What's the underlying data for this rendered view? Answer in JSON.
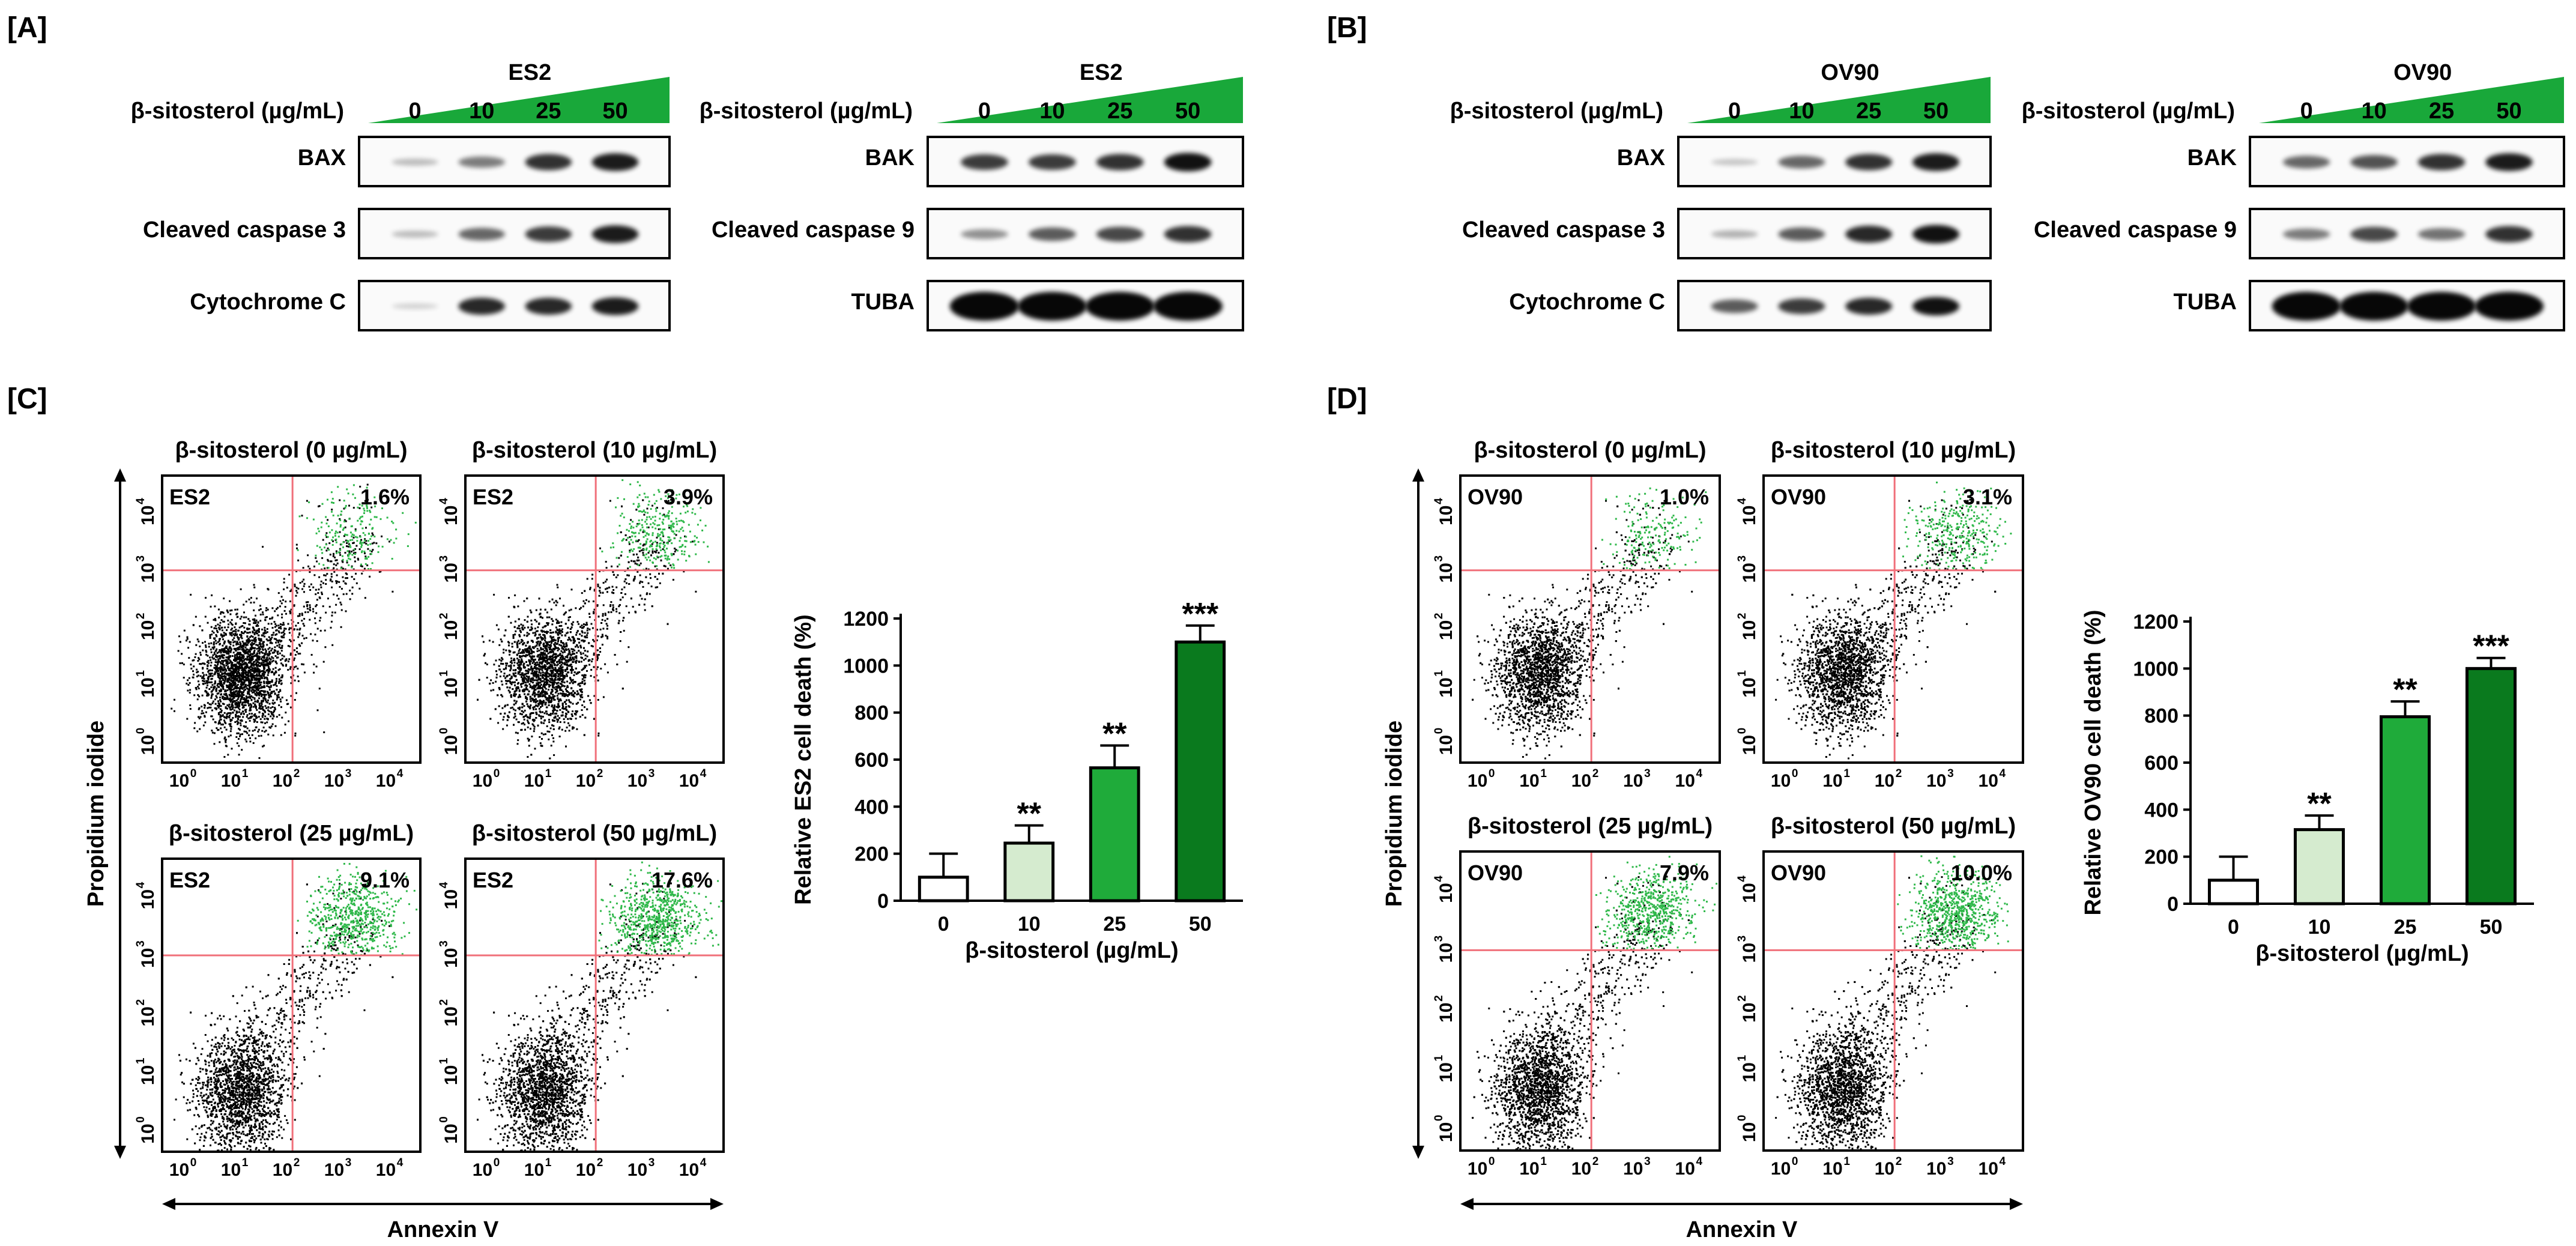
{
  "panels": [
    {
      "label": "[A]",
      "blots": [
        {
          "cell_line": "ES2",
          "dose_label": "β-sitosterol (µg/mL)",
          "doses": [
            "0",
            "10",
            "25",
            "50"
          ],
          "rows": [
            {
              "name": "BAX",
              "intensity": [
                0.15,
                0.45,
                0.8,
                0.9
              ]
            },
            {
              "name": "Cleaved caspase 3",
              "intensity": [
                0.15,
                0.55,
                0.75,
                0.9
              ]
            },
            {
              "name": "Cytochrome C",
              "intensity": [
                0.05,
                0.85,
                0.85,
                0.9
              ]
            }
          ]
        },
        {
          "cell_line": "ES2",
          "dose_label": "β-sitosterol (µg/mL)",
          "doses": [
            "0",
            "10",
            "25",
            "50"
          ],
          "rows": [
            {
              "name": "BAK",
              "intensity": [
                0.75,
                0.75,
                0.8,
                0.95
              ]
            },
            {
              "name": "Cleaved caspase 9",
              "intensity": [
                0.35,
                0.6,
                0.7,
                0.8
              ]
            },
            {
              "name": "TUBA",
              "intensity": [
                1.0,
                1.0,
                1.0,
                1.0
              ]
            }
          ]
        }
      ]
    },
    {
      "label": "[B]",
      "blots": [
        {
          "cell_line": "OV90",
          "dose_label": "β-sitosterol (µg/mL)",
          "doses": [
            "0",
            "10",
            "25",
            "50"
          ],
          "rows": [
            {
              "name": "BAX",
              "intensity": [
                0.1,
                0.55,
                0.8,
                0.9
              ]
            },
            {
              "name": "Cleaved caspase 3",
              "intensity": [
                0.2,
                0.6,
                0.85,
                0.95
              ]
            },
            {
              "name": "Cytochrome C",
              "intensity": [
                0.6,
                0.75,
                0.85,
                0.95
              ]
            }
          ]
        },
        {
          "cell_line": "OV90",
          "dose_label": "β-sitosterol (µg/mL)",
          "doses": [
            "0",
            "10",
            "25",
            "50"
          ],
          "rows": [
            {
              "name": "BAK",
              "intensity": [
                0.55,
                0.65,
                0.8,
                0.9
              ]
            },
            {
              "name": "Cleaved caspase 9",
              "intensity": [
                0.45,
                0.7,
                0.5,
                0.8
              ]
            },
            {
              "name": "TUBA",
              "intensity": [
                1.0,
                1.0,
                1.0,
                1.0
              ]
            }
          ]
        }
      ]
    },
    {
      "label": "[C]",
      "cell_line": "ES2",
      "y_axis_title": "Propidium iodide",
      "x_axis_title": "Annexin V",
      "tick_base": "10",
      "tick_exponents": [
        "0",
        "1",
        "2",
        "3",
        "4"
      ],
      "plots": [
        {
          "title": "β-sitosterol (0 µg/mL)",
          "sample": "ES2",
          "percent": "1.6%"
        },
        {
          "title": "β-sitosterol (10 µg/mL)",
          "sample": "ES2",
          "percent": "3.9%"
        },
        {
          "title": "β-sitosterol (25 µg/mL)",
          "sample": "ES2",
          "percent": "9.1%"
        },
        {
          "title": "β-sitosterol (50 µg/mL)",
          "sample": "ES2",
          "percent": "17.6%"
        }
      ]
    },
    {
      "label": "[D]",
      "cell_line": "OV90",
      "y_axis_title": "Propidium iodide",
      "x_axis_title": "Annexin V",
      "tick_base": "10",
      "tick_exponents": [
        "0",
        "1",
        "2",
        "3",
        "4"
      ],
      "plots": [
        {
          "title": "β-sitosterol (0 µg/mL)",
          "sample": "OV90",
          "percent": "1.0%"
        },
        {
          "title": "β-sitosterol (10 µg/mL)",
          "sample": "OV90",
          "percent": "3.1%"
        },
        {
          "title": "β-sitosterol (25 µg/mL)",
          "sample": "OV90",
          "percent": "7.9%"
        },
        {
          "title": "β-sitosterol (50 µg/mL)",
          "sample": "OV90",
          "percent": "10.0%"
        }
      ]
    }
  ],
  "chart_data": [
    {
      "type": "bar",
      "ylabel": "Relative ES2 cell death (%)",
      "xlabel": "β-sitosterol (µg/mL)",
      "categories": [
        "0",
        "10",
        "25",
        "50"
      ],
      "values": [
        100,
        245,
        565,
        1100
      ],
      "errors": [
        100,
        75,
        95,
        70
      ],
      "significance": [
        "",
        "**",
        "**",
        "***"
      ],
      "ylim": [
        0,
        1200
      ],
      "yticks": [
        0,
        200,
        400,
        600,
        800,
        1000,
        1200
      ],
      "colors": [
        "#ffffff",
        "#d5ebcf",
        "#1fab3a",
        "#0a7a1e"
      ]
    },
    {
      "type": "bar",
      "ylabel": "Relative OV90 cell death (%)",
      "xlabel": "β-sitosterol (µg/mL)",
      "categories": [
        "0",
        "10",
        "25",
        "50"
      ],
      "values": [
        100,
        315,
        795,
        1000
      ],
      "errors": [
        100,
        60,
        65,
        45
      ],
      "significance": [
        "",
        "**",
        "**",
        "***"
      ],
      "ylim": [
        0,
        1200
      ],
      "yticks": [
        0,
        200,
        400,
        600,
        800,
        1000,
        1200
      ],
      "colors": [
        "#ffffff",
        "#d5ebcf",
        "#1fab3a",
        "#0a7a1e"
      ]
    }
  ],
  "colors": {
    "dose_wedge": "#19a83a",
    "gate_line": "#f0707a",
    "apoptotic_dots": "#2fb84a",
    "other_dots": "#000000"
  }
}
